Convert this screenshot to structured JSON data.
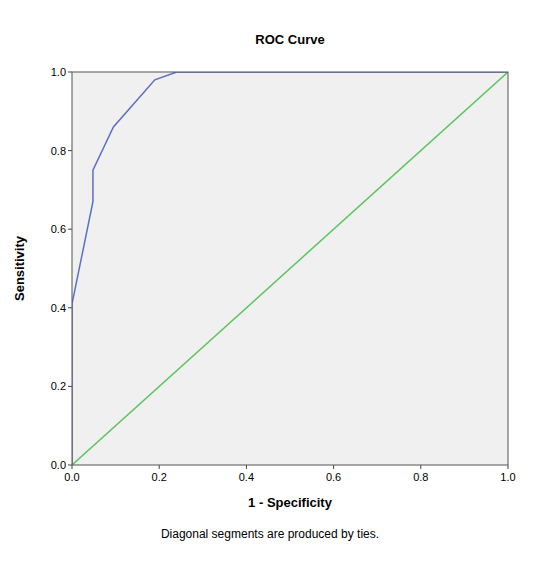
{
  "chart_data": {
    "type": "line",
    "title": "ROC Curve",
    "x_label": "1 - Specificity",
    "y_label": "Sensitivity",
    "annotations": [
      "Diagonal segments are produced by ties."
    ],
    "xlim": [
      0,
      1
    ],
    "ylim": [
      0,
      1
    ],
    "xticks": [
      {
        "value": 0,
        "label": "0.0"
      },
      0.2,
      0.4,
      0.6,
      0.8,
      {
        "value": 1,
        "label": "1.0"
      }
    ],
    "yticks": [
      {
        "value": 0,
        "label": "0.0"
      },
      0.2,
      0.4,
      0.6,
      0.8,
      {
        "value": 1,
        "label": "1.0"
      }
    ],
    "grid": false,
    "series": [
      {
        "color": "#5b6fc6",
        "x": [
          0,
          0,
          0.048,
          0.048,
          0.095,
          0.19,
          0.24,
          1.0
        ],
        "values": [
          0,
          0.41,
          0.67,
          0.75,
          0.86,
          0.98,
          1.0,
          1.0
        ]
      },
      {
        "color": "#5dc45d",
        "x": [
          0,
          1
        ],
        "values": [
          0,
          1
        ]
      }
    ]
  }
}
